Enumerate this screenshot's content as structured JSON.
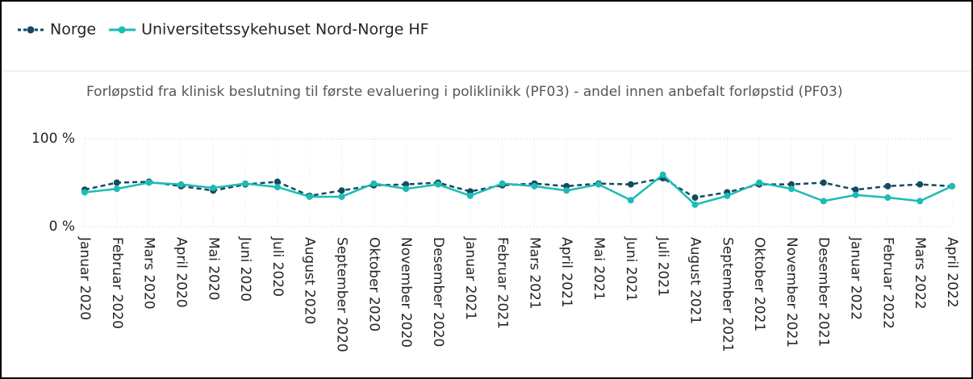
{
  "chart_data": {
    "type": "line",
    "title": "Forløpstid fra klinisk beslutning til første evaluering i poliklinikk (PF03) - andel innen anbefalt forløpstid (PF03)",
    "categories": [
      "Januar 2020",
      "Februar 2020",
      "Mars 2020",
      "April 2020",
      "Mai 2020",
      "Juni 2020",
      "Juli 2020",
      "August 2020",
      "September 2020",
      "Oktober 2020",
      "November 2020",
      "Desember 2020",
      "Januar 2021",
      "Februar 2021",
      "Mars 2021",
      "April 2021",
      "Mai 2021",
      "Juni 2021",
      "Juli 2021",
      "August 2021",
      "September 2021",
      "Oktober 2021",
      "November 2021",
      "Desember 2021",
      "Januar 2022",
      "Februar 2022",
      "Mars 2022",
      "April 2022"
    ],
    "series": [
      {
        "name": "Norge",
        "color": "#124b5e",
        "line_style": "dashed",
        "values": [
          42,
          50,
          51,
          46,
          41,
          48,
          51,
          35,
          41,
          47,
          48,
          50,
          40,
          47,
          49,
          46,
          49,
          48,
          55,
          33,
          39,
          48,
          48,
          50,
          42,
          46,
          48,
          46
        ]
      },
      {
        "name": "Universitetssykehuset Nord-Norge HF",
        "color": "#1bbcb5",
        "line_style": "solid",
        "values": [
          39,
          43,
          50,
          48,
          44,
          49,
          45,
          34,
          34,
          49,
          43,
          48,
          35,
          49,
          46,
          41,
          48,
          30,
          59,
          25,
          35,
          50,
          43,
          29,
          36,
          33,
          29,
          46
        ]
      }
    ],
    "ylim": [
      0,
      100
    ],
    "yticks": [
      {
        "value": 0,
        "label": "0 %"
      },
      {
        "value": 100,
        "label": "100 %"
      }
    ],
    "grid": true,
    "legend": "top-left"
  }
}
